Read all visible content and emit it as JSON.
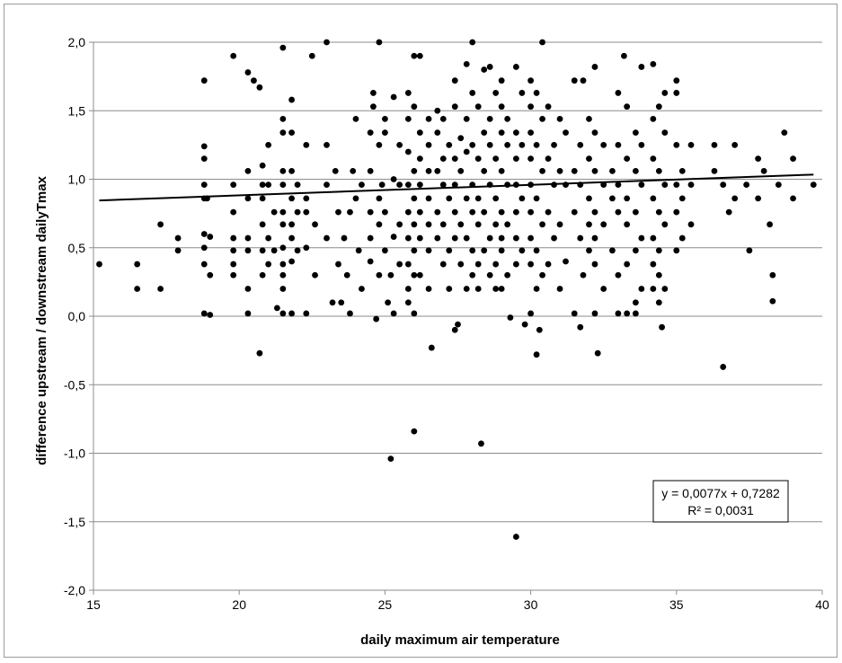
{
  "chart_data": {
    "type": "scatter",
    "title": "",
    "xlabel": "daily maximum air temperature",
    "ylabel": "difference upstream / downstream dailyTmax",
    "xlim": [
      15,
      40
    ],
    "ylim": [
      -2.0,
      2.0
    ],
    "x_ticks": [
      "15",
      "20",
      "25",
      "30",
      "35",
      "40"
    ],
    "y_ticks": [
      "2,0",
      "1,5",
      "1,0",
      "0,5",
      "0,0",
      "-0,5",
      "-1,0",
      "-1,5",
      "-2,0"
    ],
    "grid": "horizontal",
    "marker_color": "#000000",
    "trendline": {
      "slope": 0.0077,
      "intercept": 0.7282,
      "equation": "y = 0,0077x + 0,7282",
      "r_squared": "R² = 0,0031",
      "label_position": "bottom-right"
    },
    "points": [
      [
        15.2,
        0.38
      ],
      [
        16.5,
        0.38
      ],
      [
        16.5,
        0.2
      ],
      [
        17.3,
        0.2
      ],
      [
        17.3,
        0.67
      ],
      [
        17.9,
        0.57
      ],
      [
        17.9,
        0.48
      ],
      [
        18.8,
        1.72
      ],
      [
        18.8,
        1.24
      ],
      [
        18.8,
        1.15
      ],
      [
        18.8,
        0.96
      ],
      [
        18.8,
        0.86
      ],
      [
        18.8,
        0.6
      ],
      [
        18.8,
        0.5
      ],
      [
        18.8,
        0.38
      ],
      [
        18.8,
        0.02
      ],
      [
        19.0,
        0.01
      ],
      [
        19.0,
        0.58
      ],
      [
        19.0,
        0.3
      ],
      [
        18.9,
        0.86
      ],
      [
        19.8,
        1.9
      ],
      [
        19.8,
        0.96
      ],
      [
        19.8,
        0.76
      ],
      [
        19.8,
        0.57
      ],
      [
        19.8,
        0.48
      ],
      [
        19.8,
        0.38
      ],
      [
        19.8,
        0.3
      ],
      [
        20.3,
        1.78
      ],
      [
        20.5,
        1.72
      ],
      [
        20.7,
        1.67
      ],
      [
        20.3,
        1.06
      ],
      [
        20.3,
        0.86
      ],
      [
        20.3,
        0.57
      ],
      [
        20.3,
        0.48
      ],
      [
        20.3,
        0.2
      ],
      [
        20.3,
        0.02
      ],
      [
        20.7,
        -0.27
      ],
      [
        20.8,
        1.1
      ],
      [
        20.8,
        0.96
      ],
      [
        20.8,
        0.86
      ],
      [
        20.8,
        0.67
      ],
      [
        20.8,
        0.48
      ],
      [
        20.8,
        0.3
      ],
      [
        21.0,
        1.25
      ],
      [
        21.0,
        0.96
      ],
      [
        21.0,
        0.57
      ],
      [
        21.0,
        0.38
      ],
      [
        21.2,
        0.76
      ],
      [
        21.2,
        0.48
      ],
      [
        21.3,
        0.06
      ],
      [
        21.5,
        1.96
      ],
      [
        21.5,
        1.44
      ],
      [
        21.5,
        1.34
      ],
      [
        21.5,
        1.06
      ],
      [
        21.5,
        0.96
      ],
      [
        21.5,
        0.76
      ],
      [
        21.5,
        0.67
      ],
      [
        21.5,
        0.5
      ],
      [
        21.5,
        0.38
      ],
      [
        21.5,
        0.3
      ],
      [
        21.5,
        0.2
      ],
      [
        21.5,
        0.02
      ],
      [
        21.8,
        1.58
      ],
      [
        21.8,
        1.34
      ],
      [
        21.8,
        1.06
      ],
      [
        21.8,
        0.86
      ],
      [
        21.8,
        0.67
      ],
      [
        21.8,
        0.57
      ],
      [
        21.8,
        0.4
      ],
      [
        21.8,
        0.02
      ],
      [
        22.0,
        0.96
      ],
      [
        22.0,
        0.76
      ],
      [
        22.0,
        0.48
      ],
      [
        22.3,
        1.25
      ],
      [
        22.3,
        0.86
      ],
      [
        22.3,
        0.76
      ],
      [
        22.3,
        0.5
      ],
      [
        22.3,
        0.02
      ],
      [
        22.5,
        1.9
      ],
      [
        22.6,
        0.67
      ],
      [
        22.6,
        0.3
      ],
      [
        23.0,
        2.0
      ],
      [
        23.0,
        1.25
      ],
      [
        23.0,
        0.96
      ],
      [
        23.0,
        0.57
      ],
      [
        23.2,
        0.1
      ],
      [
        23.3,
        1.06
      ],
      [
        23.4,
        0.76
      ],
      [
        23.4,
        0.38
      ],
      [
        23.5,
        0.1
      ],
      [
        23.6,
        0.57
      ],
      [
        23.7,
        0.3
      ],
      [
        23.8,
        0.76
      ],
      [
        23.8,
        0.02
      ],
      [
        23.9,
        1.06
      ],
      [
        24.0,
        1.44
      ],
      [
        24.0,
        0.86
      ],
      [
        24.1,
        0.48
      ],
      [
        24.2,
        0.2
      ],
      [
        24.2,
        0.96
      ],
      [
        24.5,
        1.34
      ],
      [
        24.5,
        1.06
      ],
      [
        24.5,
        0.76
      ],
      [
        24.5,
        0.57
      ],
      [
        24.5,
        0.4
      ],
      [
        24.6,
        1.63
      ],
      [
        24.6,
        1.53
      ],
      [
        24.7,
        -0.02
      ],
      [
        24.8,
        2.0
      ],
      [
        24.8,
        1.25
      ],
      [
        24.8,
        0.86
      ],
      [
        24.8,
        0.67
      ],
      [
        24.8,
        0.3
      ],
      [
        24.9,
        0.96
      ],
      [
        25.0,
        1.44
      ],
      [
        25.0,
        1.34
      ],
      [
        25.0,
        0.76
      ],
      [
        25.0,
        0.48
      ],
      [
        25.1,
        0.1
      ],
      [
        25.2,
        -1.04
      ],
      [
        25.2,
        0.3
      ],
      [
        25.3,
        1.6
      ],
      [
        25.3,
        1.0
      ],
      [
        25.3,
        0.58
      ],
      [
        25.3,
        0.02
      ],
      [
        25.5,
        1.25
      ],
      [
        25.5,
        0.96
      ],
      [
        25.5,
        0.67
      ],
      [
        25.5,
        0.38
      ],
      [
        25.8,
        1.63
      ],
      [
        25.8,
        1.44
      ],
      [
        25.8,
        1.2
      ],
      [
        25.8,
        0.96
      ],
      [
        25.8,
        0.76
      ],
      [
        25.8,
        0.57
      ],
      [
        25.8,
        0.38
      ],
      [
        25.8,
        0.2
      ],
      [
        25.8,
        0.1
      ],
      [
        26.0,
        1.9
      ],
      [
        26.0,
        1.53
      ],
      [
        26.0,
        1.06
      ],
      [
        26.0,
        0.86
      ],
      [
        26.0,
        0.67
      ],
      [
        26.0,
        0.48
      ],
      [
        26.0,
        0.3
      ],
      [
        26.0,
        0.02
      ],
      [
        26.0,
        -0.84
      ],
      [
        26.2,
        1.9
      ],
      [
        26.2,
        1.34
      ],
      [
        26.2,
        1.15
      ],
      [
        26.2,
        0.96
      ],
      [
        26.2,
        0.76
      ],
      [
        26.2,
        0.57
      ],
      [
        26.2,
        0.3
      ],
      [
        26.5,
        1.44
      ],
      [
        26.5,
        1.25
      ],
      [
        26.5,
        1.06
      ],
      [
        26.5,
        0.86
      ],
      [
        26.5,
        0.67
      ],
      [
        26.5,
        0.48
      ],
      [
        26.5,
        0.2
      ],
      [
        26.6,
        -0.23
      ],
      [
        26.8,
        1.5
      ],
      [
        26.8,
        1.34
      ],
      [
        26.8,
        1.06
      ],
      [
        26.8,
        0.76
      ],
      [
        26.8,
        0.57
      ],
      [
        27.0,
        1.44
      ],
      [
        27.0,
        1.15
      ],
      [
        27.0,
        0.96
      ],
      [
        27.0,
        0.67
      ],
      [
        27.0,
        0.38
      ],
      [
        27.2,
        1.25
      ],
      [
        27.2,
        0.86
      ],
      [
        27.2,
        0.48
      ],
      [
        27.2,
        0.2
      ],
      [
        27.4,
        1.72
      ],
      [
        27.4,
        1.53
      ],
      [
        27.4,
        1.15
      ],
      [
        27.4,
        0.96
      ],
      [
        27.4,
        0.76
      ],
      [
        27.4,
        0.57
      ],
      [
        27.4,
        -0.1
      ],
      [
        27.5,
        -0.06
      ],
      [
        27.6,
        1.3
      ],
      [
        27.6,
        1.06
      ],
      [
        27.6,
        0.67
      ],
      [
        27.6,
        0.38
      ],
      [
        27.8,
        1.84
      ],
      [
        27.8,
        1.44
      ],
      [
        27.8,
        1.2
      ],
      [
        27.8,
        0.86
      ],
      [
        27.8,
        0.57
      ],
      [
        27.8,
        0.2
      ],
      [
        28.0,
        2.0
      ],
      [
        28.0,
        1.63
      ],
      [
        28.0,
        1.25
      ],
      [
        28.0,
        0.96
      ],
      [
        28.0,
        0.76
      ],
      [
        28.0,
        0.48
      ],
      [
        28.0,
        0.3
      ],
      [
        28.2,
        1.53
      ],
      [
        28.2,
        1.15
      ],
      [
        28.2,
        0.86
      ],
      [
        28.2,
        0.67
      ],
      [
        28.2,
        0.38
      ],
      [
        28.2,
        0.2
      ],
      [
        28.3,
        -0.93
      ],
      [
        28.4,
        1.8
      ],
      [
        28.4,
        1.34
      ],
      [
        28.4,
        1.06
      ],
      [
        28.4,
        0.76
      ],
      [
        28.4,
        0.48
      ],
      [
        28.6,
        1.82
      ],
      [
        28.6,
        1.44
      ],
      [
        28.6,
        1.25
      ],
      [
        28.6,
        0.96
      ],
      [
        28.6,
        0.57
      ],
      [
        28.6,
        0.3
      ],
      [
        28.8,
        1.63
      ],
      [
        28.8,
        1.15
      ],
      [
        28.8,
        0.86
      ],
      [
        28.8,
        0.67
      ],
      [
        28.8,
        0.38
      ],
      [
        28.8,
        0.2
      ],
      [
        29.0,
        1.72
      ],
      [
        29.0,
        1.53
      ],
      [
        29.0,
        1.34
      ],
      [
        29.0,
        1.06
      ],
      [
        29.0,
        0.76
      ],
      [
        29.0,
        0.57
      ],
      [
        29.0,
        0.48
      ],
      [
        29.0,
        0.2
      ],
      [
        29.2,
        1.44
      ],
      [
        29.2,
        1.25
      ],
      [
        29.2,
        0.96
      ],
      [
        29.2,
        0.67
      ],
      [
        29.2,
        0.3
      ],
      [
        29.3,
        -0.01
      ],
      [
        29.5,
        -1.61
      ],
      [
        29.5,
        1.82
      ],
      [
        29.5,
        1.34
      ],
      [
        29.5,
        1.15
      ],
      [
        29.5,
        0.96
      ],
      [
        29.5,
        0.76
      ],
      [
        29.5,
        0.57
      ],
      [
        29.5,
        0.38
      ],
      [
        29.7,
        1.63
      ],
      [
        29.7,
        1.25
      ],
      [
        29.7,
        0.86
      ],
      [
        29.7,
        0.48
      ],
      [
        29.8,
        -0.06
      ],
      [
        30.0,
        1.72
      ],
      [
        30.0,
        1.53
      ],
      [
        30.0,
        1.34
      ],
      [
        30.0,
        1.15
      ],
      [
        30.0,
        0.96
      ],
      [
        30.0,
        0.76
      ],
      [
        30.0,
        0.57
      ],
      [
        30.0,
        0.38
      ],
      [
        30.0,
        0.02
      ],
      [
        30.2,
        1.63
      ],
      [
        30.2,
        1.25
      ],
      [
        30.2,
        0.86
      ],
      [
        30.2,
        0.48
      ],
      [
        30.2,
        0.2
      ],
      [
        30.2,
        -0.28
      ],
      [
        30.3,
        -0.1
      ],
      [
        30.4,
        2.0
      ],
      [
        30.4,
        1.44
      ],
      [
        30.4,
        1.06
      ],
      [
        30.4,
        0.67
      ],
      [
        30.4,
        0.3
      ],
      [
        30.6,
        1.53
      ],
      [
        30.6,
        1.15
      ],
      [
        30.6,
        0.76
      ],
      [
        30.6,
        0.38
      ],
      [
        30.8,
        1.25
      ],
      [
        30.8,
        0.96
      ],
      [
        30.8,
        0.57
      ],
      [
        31.0,
        1.44
      ],
      [
        31.0,
        1.06
      ],
      [
        31.0,
        0.67
      ],
      [
        31.0,
        0.2
      ],
      [
        31.2,
        1.34
      ],
      [
        31.2,
        0.96
      ],
      [
        31.2,
        0.4
      ],
      [
        31.5,
        1.72
      ],
      [
        31.5,
        1.06
      ],
      [
        31.5,
        0.76
      ],
      [
        31.5,
        0.02
      ],
      [
        31.7,
        1.25
      ],
      [
        31.7,
        0.96
      ],
      [
        31.7,
        0.57
      ],
      [
        31.7,
        -0.08
      ],
      [
        31.8,
        1.72
      ],
      [
        31.8,
        0.3
      ],
      [
        32.0,
        1.44
      ],
      [
        32.0,
        1.15
      ],
      [
        32.0,
        0.86
      ],
      [
        32.0,
        0.67
      ],
      [
        32.0,
        0.48
      ],
      [
        32.2,
        1.82
      ],
      [
        32.2,
        1.34
      ],
      [
        32.2,
        1.06
      ],
      [
        32.2,
        0.76
      ],
      [
        32.2,
        0.57
      ],
      [
        32.2,
        0.38
      ],
      [
        32.2,
        0.02
      ],
      [
        32.3,
        -0.27
      ],
      [
        32.5,
        1.25
      ],
      [
        32.5,
        0.96
      ],
      [
        32.5,
        0.67
      ],
      [
        32.5,
        0.2
      ],
      [
        32.8,
        1.06
      ],
      [
        32.8,
        0.86
      ],
      [
        32.8,
        0.48
      ],
      [
        33.0,
        1.63
      ],
      [
        33.0,
        1.25
      ],
      [
        33.0,
        0.96
      ],
      [
        33.0,
        0.76
      ],
      [
        33.0,
        0.3
      ],
      [
        33.0,
        0.02
      ],
      [
        33.2,
        1.9
      ],
      [
        33.3,
        1.53
      ],
      [
        33.3,
        1.15
      ],
      [
        33.3,
        0.86
      ],
      [
        33.3,
        0.67
      ],
      [
        33.3,
        0.38
      ],
      [
        33.3,
        0.02
      ],
      [
        33.6,
        1.34
      ],
      [
        33.6,
        1.06
      ],
      [
        33.6,
        0.76
      ],
      [
        33.6,
        0.48
      ],
      [
        33.6,
        0.1
      ],
      [
        33.6,
        0.02
      ],
      [
        33.8,
        1.82
      ],
      [
        33.8,
        1.25
      ],
      [
        33.8,
        0.96
      ],
      [
        33.8,
        0.57
      ],
      [
        33.8,
        0.2
      ],
      [
        34.2,
        1.84
      ],
      [
        34.2,
        1.44
      ],
      [
        34.2,
        1.15
      ],
      [
        34.2,
        0.86
      ],
      [
        34.2,
        0.57
      ],
      [
        34.2,
        0.38
      ],
      [
        34.2,
        0.2
      ],
      [
        34.4,
        1.53
      ],
      [
        34.4,
        1.06
      ],
      [
        34.4,
        0.76
      ],
      [
        34.4,
        0.48
      ],
      [
        34.4,
        0.3
      ],
      [
        34.4,
        0.1
      ],
      [
        34.5,
        -0.08
      ],
      [
        34.6,
        1.63
      ],
      [
        34.6,
        1.34
      ],
      [
        34.6,
        0.96
      ],
      [
        34.6,
        0.67
      ],
      [
        34.6,
        0.2
      ],
      [
        35.0,
        1.72
      ],
      [
        35.0,
        1.63
      ],
      [
        35.0,
        1.25
      ],
      [
        35.0,
        0.96
      ],
      [
        35.0,
        0.76
      ],
      [
        35.0,
        0.48
      ],
      [
        35.2,
        1.06
      ],
      [
        35.2,
        0.86
      ],
      [
        35.2,
        0.57
      ],
      [
        35.5,
        1.25
      ],
      [
        35.5,
        0.96
      ],
      [
        35.5,
        0.67
      ],
      [
        36.3,
        1.25
      ],
      [
        36.3,
        1.06
      ],
      [
        36.6,
        0.96
      ],
      [
        36.6,
        -0.37
      ],
      [
        36.8,
        0.76
      ],
      [
        37.0,
        1.25
      ],
      [
        37.0,
        0.86
      ],
      [
        37.4,
        0.96
      ],
      [
        37.5,
        0.48
      ],
      [
        37.8,
        1.15
      ],
      [
        37.8,
        0.86
      ],
      [
        38.0,
        1.06
      ],
      [
        38.2,
        0.67
      ],
      [
        38.3,
        0.3
      ],
      [
        38.3,
        0.11
      ],
      [
        38.5,
        0.96
      ],
      [
        38.7,
        1.34
      ],
      [
        39.0,
        1.15
      ],
      [
        39.0,
        0.86
      ],
      [
        39.7,
        0.96
      ]
    ]
  }
}
